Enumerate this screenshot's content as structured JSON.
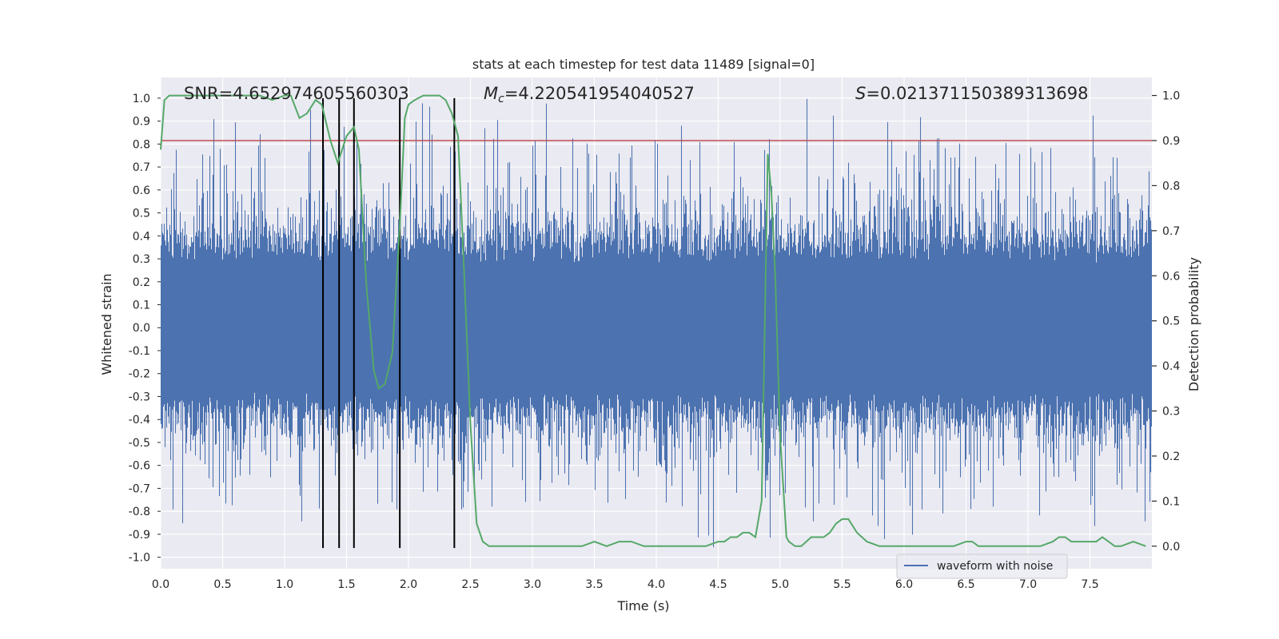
{
  "chart_data": {
    "type": "line",
    "title": "stats at each timestep for test data 11489 [signal=0]",
    "xlabel": "Time (s)",
    "ylabel": "Whitened strain",
    "ylabel_right": "Detection probability",
    "xlim": [
      0.0,
      8.0
    ],
    "ylim": [
      -1.05,
      1.09
    ],
    "ylim_right": [
      -0.05,
      1.04
    ],
    "x_ticks": [
      "0.0",
      "0.5",
      "1.0",
      "1.5",
      "2.0",
      "2.5",
      "3.0",
      "3.5",
      "4.0",
      "4.5",
      "5.0",
      "5.5",
      "6.0",
      "6.5",
      "7.0",
      "7.5"
    ],
    "x_tick_values": [
      0.0,
      0.5,
      1.0,
      1.5,
      2.0,
      2.5,
      3.0,
      3.5,
      4.0,
      4.5,
      5.0,
      5.5,
      6.0,
      6.5,
      7.0,
      7.5
    ],
    "y_ticks": [
      "1.0",
      "0.9",
      "0.8",
      "0.7",
      "0.6",
      "0.5",
      "0.4",
      "0.3",
      "0.2",
      "0.1",
      "0.0",
      "-0.1",
      "-0.2",
      "-0.3",
      "-0.4",
      "-0.5",
      "-0.6",
      "-0.7",
      "-0.8",
      "-0.9",
      "-1.0"
    ],
    "y_tick_values": [
      1.0,
      0.9,
      0.8,
      0.7,
      0.6,
      0.5,
      0.4,
      0.3,
      0.2,
      0.1,
      0.0,
      -0.1,
      -0.2,
      -0.3,
      -0.4,
      -0.5,
      -0.6,
      -0.7,
      -0.8,
      -0.9,
      -1.0
    ],
    "y_right_ticks": [
      "1.0",
      "0.9",
      "0.8",
      "0.7",
      "0.6",
      "0.5",
      "0.4",
      "0.3",
      "0.2",
      "0.1",
      "0.0"
    ],
    "y_right_tick_values": [
      1.0,
      0.9,
      0.8,
      0.7,
      0.6,
      0.5,
      0.4,
      0.3,
      0.2,
      0.1,
      0.0
    ],
    "annotations": [
      {
        "name": "snr-annotation",
        "text": "SNR=4.652974605560303"
      },
      {
        "name": "mc-annotation",
        "text": "=4.220541954040527",
        "symbol": "M",
        "subscript": "c"
      },
      {
        "name": "s-annotation",
        "text": "=0.021371150389313698",
        "symbol": "S"
      }
    ],
    "threshold": {
      "value": 0.9,
      "axis": "right",
      "color": "#c44e52"
    },
    "event_markers_x": [
      1.31,
      1.44,
      1.56,
      1.93,
      2.37
    ],
    "event_markers_top": 1.0,
    "event_markers_bottom": -0.96,
    "series": [
      {
        "name": "waveform with noise",
        "color": "#4c72b0",
        "axis": "left",
        "description": "whitened noise, roughly uniform amplitude about 0.4-0.6 with spikes to about 1.0",
        "envelope_positive_peak": 1.0,
        "envelope_negative_peak": -0.96
      },
      {
        "name": "detection probability",
        "color": "#55a868",
        "axis": "right",
        "x": [
          0.0,
          0.03,
          0.07,
          0.12,
          0.2,
          0.3,
          0.4,
          0.5,
          0.6,
          0.7,
          0.8,
          0.9,
          1.0,
          1.05,
          1.12,
          1.18,
          1.25,
          1.3,
          1.37,
          1.43,
          1.5,
          1.56,
          1.6,
          1.66,
          1.72,
          1.76,
          1.81,
          1.87,
          1.93,
          1.97,
          2.0,
          2.05,
          2.12,
          2.18,
          2.25,
          2.3,
          2.35,
          2.4,
          2.45,
          2.5,
          2.55,
          2.6,
          2.65,
          2.75,
          2.9,
          3.0,
          3.2,
          3.3,
          3.4,
          3.5,
          3.6,
          3.7,
          3.8,
          3.9,
          4.0,
          4.1,
          4.2,
          4.3,
          4.4,
          4.5,
          4.55,
          4.6,
          4.65,
          4.7,
          4.75,
          4.8,
          4.85,
          4.9,
          4.93,
          4.96,
          5.0,
          5.05,
          5.07,
          5.12,
          5.17,
          5.25,
          5.35,
          5.4,
          5.45,
          5.5,
          5.55,
          5.62,
          5.7,
          5.8,
          5.9,
          6.0,
          6.2,
          6.4,
          6.5,
          6.55,
          6.6,
          6.7,
          6.8,
          6.9,
          7.0,
          7.1,
          7.2,
          7.25,
          7.3,
          7.35,
          7.45,
          7.55,
          7.6,
          7.65,
          7.7,
          7.75,
          7.85,
          7.95
        ],
        "y": [
          0.88,
          0.99,
          1.0,
          1.0,
          1.0,
          1.0,
          1.0,
          1.0,
          1.0,
          1.0,
          1.0,
          0.99,
          1.0,
          1.0,
          0.95,
          0.96,
          0.99,
          0.98,
          0.9,
          0.85,
          0.91,
          0.93,
          0.88,
          0.58,
          0.39,
          0.35,
          0.36,
          0.43,
          0.71,
          0.95,
          0.98,
          0.99,
          1.0,
          1.0,
          1.0,
          0.99,
          0.96,
          0.91,
          0.6,
          0.27,
          0.05,
          0.01,
          0.0,
          0.0,
          0.0,
          0.0,
          0.0,
          0.0,
          0.0,
          0.01,
          0.0,
          0.01,
          0.01,
          0.0,
          0.0,
          0.0,
          0.0,
          0.0,
          0.0,
          0.01,
          0.01,
          0.02,
          0.02,
          0.03,
          0.03,
          0.02,
          0.1,
          0.87,
          0.78,
          0.6,
          0.24,
          0.02,
          0.01,
          0.0,
          0.0,
          0.02,
          0.02,
          0.03,
          0.05,
          0.06,
          0.06,
          0.03,
          0.01,
          0.0,
          0.0,
          0.0,
          0.0,
          0.0,
          0.01,
          0.01,
          0.0,
          0.0,
          0.0,
          0.0,
          0.0,
          0.0,
          0.01,
          0.02,
          0.02,
          0.01,
          0.01,
          0.01,
          0.02,
          0.01,
          0.0,
          0.0,
          0.01,
          0.0
        ]
      }
    ],
    "legend": {
      "entries": [
        "waveform with noise"
      ],
      "position": "lower-right"
    },
    "colors": {
      "background": "#eaeaf2",
      "grid": "#ffffff",
      "waveform": "#4c72b0",
      "probability": "#55a868",
      "threshold": "#c44e52",
      "markers": "#000000"
    }
  }
}
